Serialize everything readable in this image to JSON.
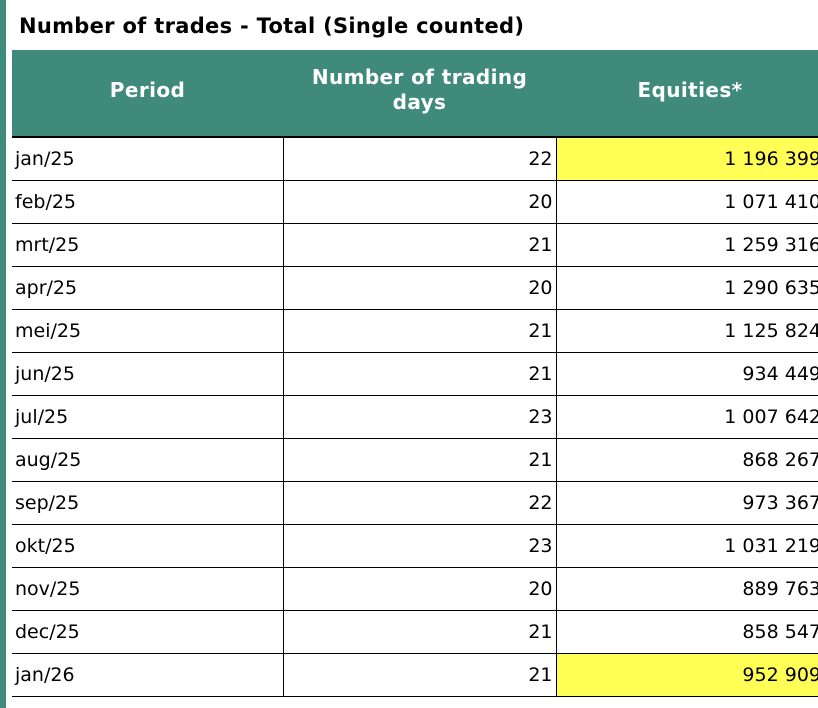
{
  "title": "Number of trades - Total (Single counted)",
  "columns": {
    "period": "Period",
    "days": "Number of trading days",
    "equities": "Equities*"
  },
  "colors": {
    "header_bg": "#3f8a7a",
    "highlight": "#ffff55"
  },
  "rows": [
    {
      "period": "jan/25",
      "days": "22",
      "equities": "1 196 399",
      "highlight": true
    },
    {
      "period": "feb/25",
      "days": "20",
      "equities": "1 071 410",
      "highlight": false
    },
    {
      "period": "mrt/25",
      "days": "21",
      "equities": "1 259 316",
      "highlight": false
    },
    {
      "period": "apr/25",
      "days": "20",
      "equities": "1 290 635",
      "highlight": false
    },
    {
      "period": "mei/25",
      "days": "21",
      "equities": "1 125 824",
      "highlight": false
    },
    {
      "period": "jun/25",
      "days": "21",
      "equities": "934 449",
      "highlight": false
    },
    {
      "period": "jul/25",
      "days": "23",
      "equities": "1 007 642",
      "highlight": false
    },
    {
      "period": "aug/25",
      "days": "21",
      "equities": "868 267",
      "highlight": false
    },
    {
      "period": "sep/25",
      "days": "22",
      "equities": "973 367",
      "highlight": false
    },
    {
      "period": "okt/25",
      "days": "23",
      "equities": "1 031 219",
      "highlight": false
    },
    {
      "period": "nov/25",
      "days": "20",
      "equities": "889 763",
      "highlight": false
    },
    {
      "period": "dec/25",
      "days": "21",
      "equities": "858 547",
      "highlight": false
    },
    {
      "period": "jan/26",
      "days": "21",
      "equities": "952 909",
      "highlight": true
    }
  ]
}
